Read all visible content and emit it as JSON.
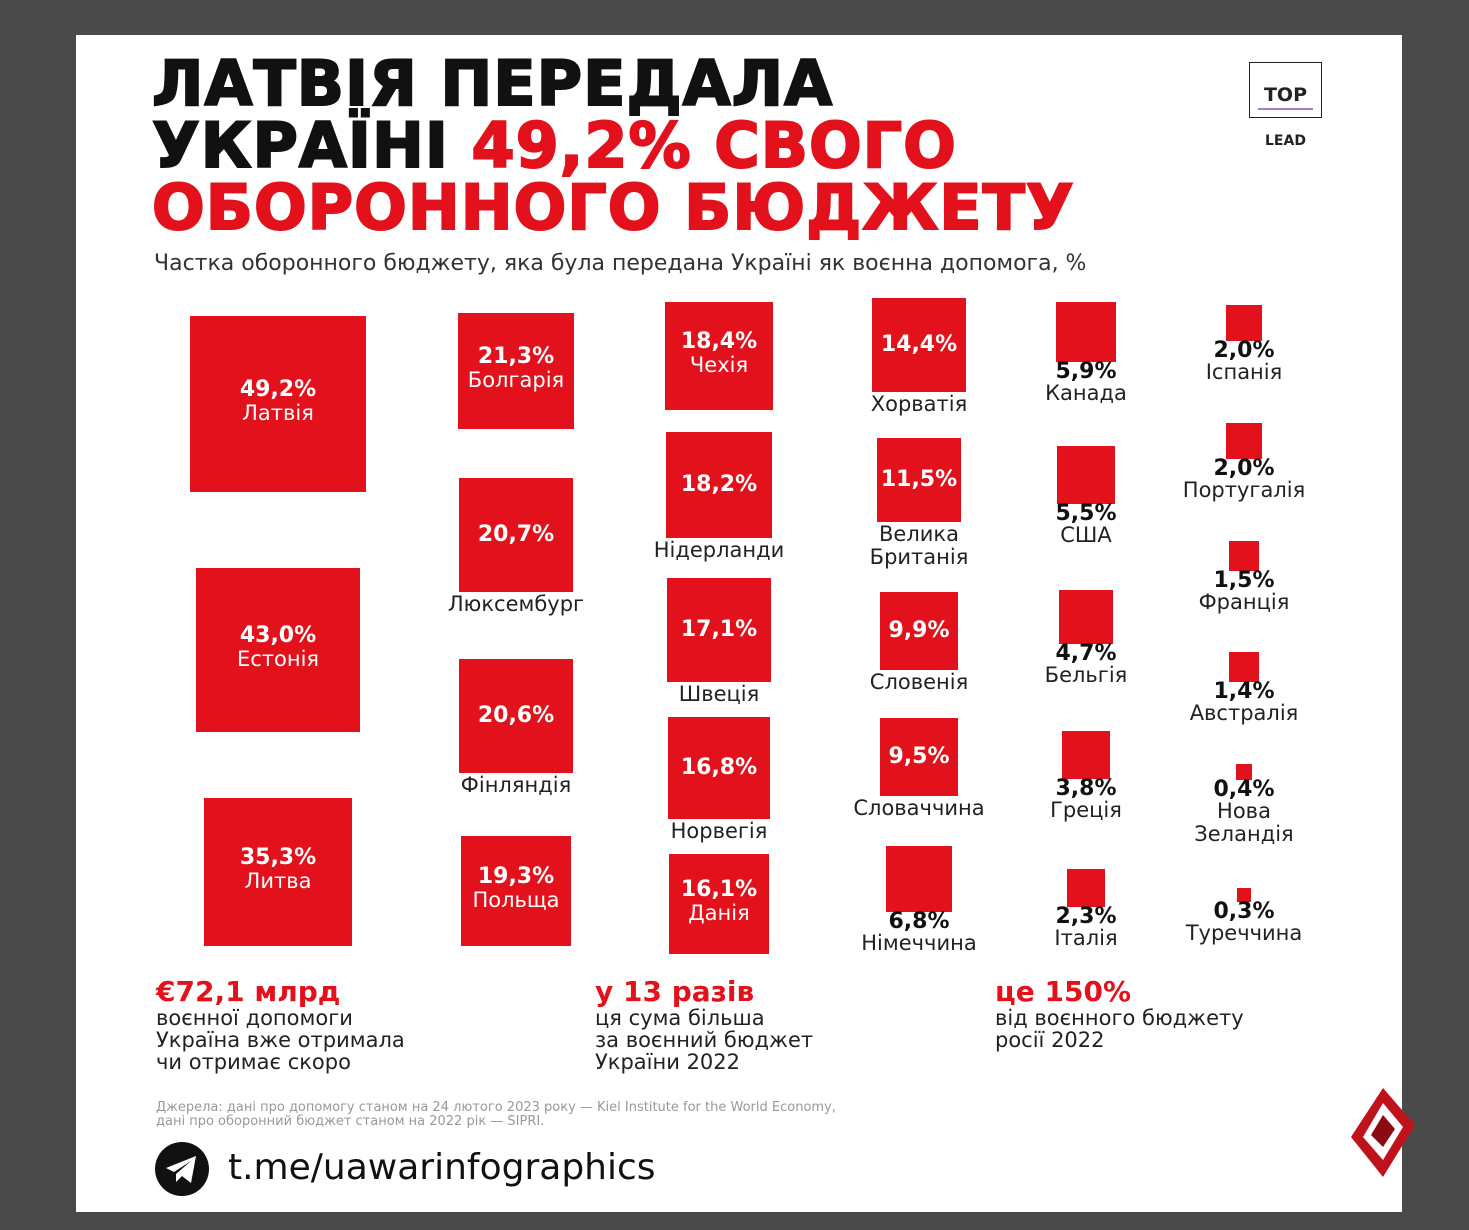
{
  "chart_data": {
    "type": "area-squares",
    "title": "ЛАТВІЯ ПЕРЕДАЛА\nУКРАЇНІ",
    "title_highlight": "49,2% СВОГО\nОБОРОННОГО БЮДЖЕТУ",
    "subtitle": "Частка оборонного бюджету, яка була передана Україні як воєнна допомога, %",
    "color": "#e3111b",
    "categories": [
      "Латвія",
      "Естонія",
      "Литва",
      "Болгарія",
      "Люксембург",
      "Фінляндія",
      "Польща",
      "Чехія",
      "Нідерланди",
      "Швеція",
      "Норвегія",
      "Данія",
      "Хорватія",
      "Велика\nБританія",
      "Словенія",
      "Словаччина",
      "Німеччина",
      "Канада",
      "США",
      "Бельгія",
      "Греція",
      "Італія",
      "Іспанія",
      "Португалія",
      "Франція",
      "Австралія",
      "Нова\nЗеландія",
      "Туреччина"
    ],
    "values": [
      49.2,
      43.0,
      35.3,
      21.3,
      20.7,
      20.6,
      19.3,
      18.4,
      18.2,
      17.1,
      16.8,
      16.1,
      14.4,
      11.5,
      9.9,
      9.5,
      6.8,
      5.9,
      5.5,
      4.7,
      3.8,
      2.3,
      2.0,
      2.0,
      1.5,
      1.4,
      0.4,
      0.3
    ],
    "value_labels": [
      "49,2%",
      "43,0%",
      "35,3%",
      "21,3%",
      "20,7%",
      "20,6%",
      "19,3%",
      "18,4%",
      "18,2%",
      "17,1%",
      "16,8%",
      "16,1%",
      "14,4%",
      "11,5%",
      "9,9%",
      "9,5%",
      "6,8%",
      "5,9%",
      "5,5%",
      "4,7%",
      "3,8%",
      "2,3%",
      "2,0%",
      "2,0%",
      "1,5%",
      "1,4%",
      "0,4%",
      "0,3%"
    ]
  },
  "logo": {
    "top": "TOP",
    "bottom": "LEAD"
  },
  "stats": [
    {
      "headline": "€72,1 млрд",
      "text": "воєнної допомоги\nУкраїна вже отримала\nчи отримає скоро"
    },
    {
      "headline": "у 13 разів",
      "text": "ця сума більша\nза воєнний бюджет\nУкраїни 2022"
    },
    {
      "headline": "це 150%",
      "text": "від воєнного бюджету\nросії 2022"
    }
  ],
  "sources": "Джерела: дані про допомогу станом на 24 лютого 2023 року — Kiel Institute for the World Economy,\nдані про оборонний бюджет станом на 2022 рік — SIPRI.",
  "link": "t.me/uawarinfographics"
}
